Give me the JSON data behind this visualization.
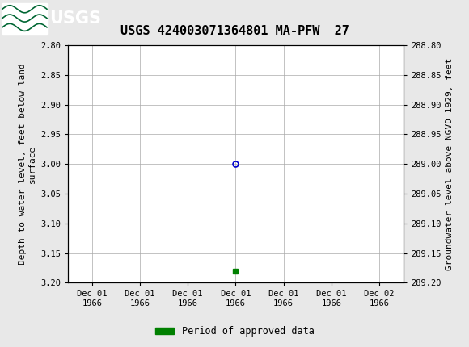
{
  "title": "USGS 424003071364801 MA-PFW  27",
  "left_ylabel": "Depth to water level, feet below land\n surface",
  "right_ylabel": "Groundwater level above NGVD 1929, feet",
  "ylim_left": [
    2.8,
    3.2
  ],
  "ylim_right": [
    288.8,
    289.2
  ],
  "left_yticks": [
    2.8,
    2.85,
    2.9,
    2.95,
    3.0,
    3.05,
    3.1,
    3.15,
    3.2
  ],
  "right_yticks": [
    288.8,
    288.85,
    288.9,
    288.95,
    289.0,
    289.05,
    289.1,
    289.15,
    289.2
  ],
  "data_point_x": 3,
  "data_point_y": 3.0,
  "bar_x": 3,
  "bar_y": 3.18,
  "bar_color": "#008000",
  "point_color": "#0000cc",
  "header_bg_color": "#006633",
  "header_text_color": "#ffffff",
  "bg_color": "#e8e8e8",
  "plot_bg_color": "#ffffff",
  "grid_color": "#aaaaaa",
  "legend_label": "Period of approved data",
  "x_ticks": [
    0,
    1,
    2,
    3,
    4,
    5,
    6
  ],
  "x_labels": [
    "Dec 01\n1966",
    "Dec 01\n1966",
    "Dec 01\n1966",
    "Dec 01\n1966",
    "Dec 01\n1966",
    "Dec 01\n1966",
    "Dec 02\n1966"
  ],
  "title_fontsize": 11,
  "axis_label_fontsize": 8,
  "tick_fontsize": 7.5
}
